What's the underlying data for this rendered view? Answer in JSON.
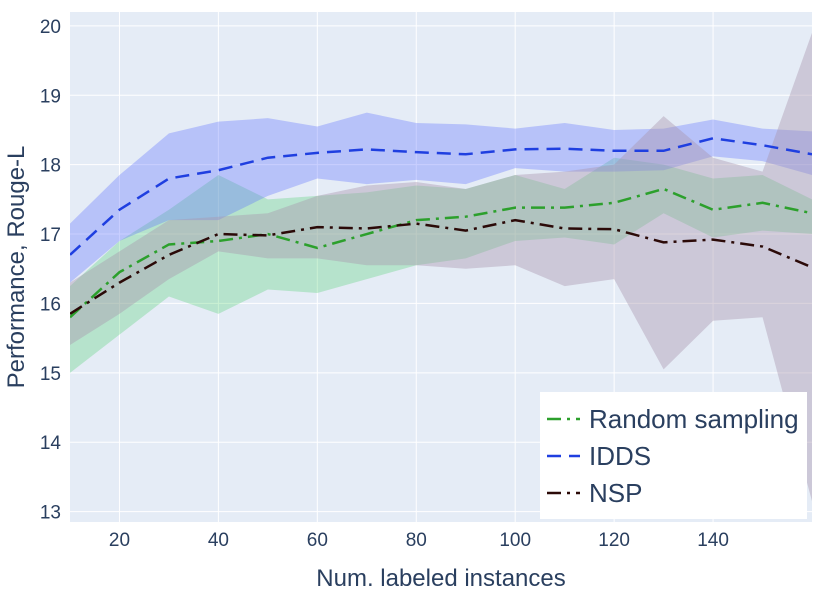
{
  "chart_data": {
    "type": "line",
    "title": "",
    "xlabel": "Num. labeled instances",
    "ylabel": "Performance, Rouge-L",
    "xlim": [
      10,
      160
    ],
    "ylim": [
      12.85,
      20.2
    ],
    "xticks": [
      20,
      40,
      60,
      80,
      100,
      120,
      140
    ],
    "yticks": [
      13,
      14,
      15,
      16,
      17,
      18,
      19,
      20
    ],
    "x": [
      10,
      20,
      30,
      40,
      50,
      60,
      70,
      80,
      90,
      100,
      110,
      120,
      130,
      140,
      150,
      160
    ],
    "legend_position": "bottom-right",
    "series": [
      {
        "name": "Random sampling",
        "color": "#2ca02c",
        "band_color": "rgba(44,200,80,0.25)",
        "dash": "dashdot",
        "values": [
          15.8,
          16.45,
          16.85,
          16.9,
          17.0,
          16.8,
          17.0,
          17.2,
          17.25,
          17.38,
          17.38,
          17.45,
          17.65,
          17.35,
          17.45,
          17.3
        ],
        "upper": [
          16.25,
          16.9,
          17.35,
          17.85,
          17.5,
          17.55,
          17.6,
          17.7,
          17.65,
          17.85,
          17.65,
          18.1,
          18.0,
          17.8,
          17.85,
          17.5
        ],
        "lower": [
          15.0,
          15.55,
          16.1,
          15.85,
          16.2,
          16.15,
          16.35,
          16.55,
          16.65,
          16.9,
          16.95,
          16.85,
          17.3,
          16.95,
          17.05,
          17.0
        ]
      },
      {
        "name": "IDDS",
        "color": "#1f3fe0",
        "band_color": "rgba(90,110,255,0.33)",
        "dash": "dash",
        "values": [
          16.7,
          17.35,
          17.8,
          17.92,
          18.1,
          18.17,
          18.22,
          18.18,
          18.15,
          18.22,
          18.23,
          18.2,
          18.2,
          18.38,
          18.28,
          18.15
        ],
        "upper": [
          17.15,
          17.85,
          18.45,
          18.62,
          18.67,
          18.55,
          18.75,
          18.6,
          18.58,
          18.52,
          18.6,
          18.5,
          18.52,
          18.65,
          18.52,
          18.48
        ],
        "lower": [
          16.3,
          16.9,
          17.2,
          17.2,
          17.55,
          17.8,
          17.72,
          17.78,
          17.72,
          17.95,
          17.9,
          17.9,
          17.92,
          18.12,
          18.05,
          17.85
        ]
      },
      {
        "name": "NSP",
        "color": "#2b0a08",
        "band_color": "rgba(170,150,175,0.42)",
        "dash": "dashdot",
        "values": [
          15.85,
          16.3,
          16.7,
          17.0,
          16.98,
          17.1,
          17.08,
          17.15,
          17.05,
          17.2,
          17.08,
          17.07,
          16.88,
          16.92,
          16.82,
          16.52
        ],
        "upper": [
          16.3,
          16.75,
          17.2,
          17.25,
          17.3,
          17.55,
          17.7,
          17.75,
          17.65,
          17.85,
          17.9,
          18.0,
          18.7,
          18.1,
          17.9,
          19.9
        ],
        "lower": [
          15.4,
          15.85,
          16.35,
          16.75,
          16.65,
          16.65,
          16.55,
          16.55,
          16.5,
          16.55,
          16.25,
          16.35,
          15.05,
          15.75,
          15.8,
          13.15
        ]
      }
    ]
  }
}
